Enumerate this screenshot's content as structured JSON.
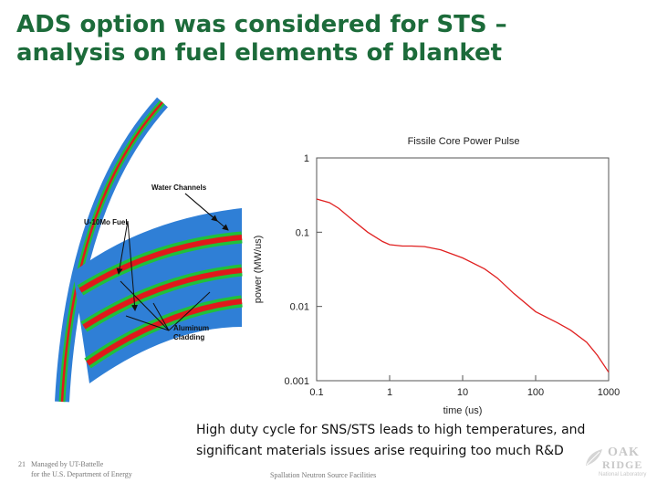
{
  "slide": {
    "title_line1": "ADS option was considered for STS –",
    "title_line2": "analysis on fuel elements of blanket",
    "caption_line1": "High duty cycle for SNS/STS leads to high temperatures, and",
    "caption_line2": "significant materials issues arise requiring too much R&D",
    "page_number": "21",
    "footer_left_line1": "Managed by UT-Battelle",
    "footer_left_line2": "for the U.S. Department of Energy",
    "footer_center": "Spallation Neutron Source Facilities",
    "logo_line1": "OAK",
    "logo_line2": "RIDGE",
    "logo_line3": "National Laboratory"
  },
  "diagram": {
    "label_water": "Water Channels",
    "label_fuel": "U-10Mo Fuel",
    "label_aluminum": "Aluminum",
    "label_cladding": "Cladding",
    "colors": {
      "cladding": "#2f7fd6",
      "fuel": "#e0191b",
      "water": "#21c03a"
    }
  },
  "chart_data": {
    "type": "line",
    "title": "Fissile Core Power Pulse",
    "xlabel": "time (us)",
    "ylabel": "power (MW/us)",
    "x_scale": "log",
    "y_scale": "log",
    "xlim": [
      0.1,
      1000
    ],
    "ylim": [
      0.001,
      1
    ],
    "x_ticks": [
      "0.1",
      "1",
      "10",
      "100",
      "1000"
    ],
    "y_ticks": [
      "0.001",
      "0.01",
      "0.1",
      "1"
    ],
    "color": "#e02020",
    "series": [
      {
        "x": [
          0.1,
          0.15,
          0.2,
          0.3,
          0.5,
          0.8,
          1.0,
          1.5,
          2,
          3,
          5,
          10,
          20,
          30,
          50,
          100,
          200,
          300,
          500,
          700,
          1000
        ],
        "y": [
          0.28,
          0.25,
          0.21,
          0.15,
          0.1,
          0.075,
          0.068,
          0.065,
          0.065,
          0.064,
          0.058,
          0.045,
          0.032,
          0.024,
          0.015,
          0.0085,
          0.006,
          0.0048,
          0.0033,
          0.0022,
          0.0013
        ]
      }
    ]
  }
}
